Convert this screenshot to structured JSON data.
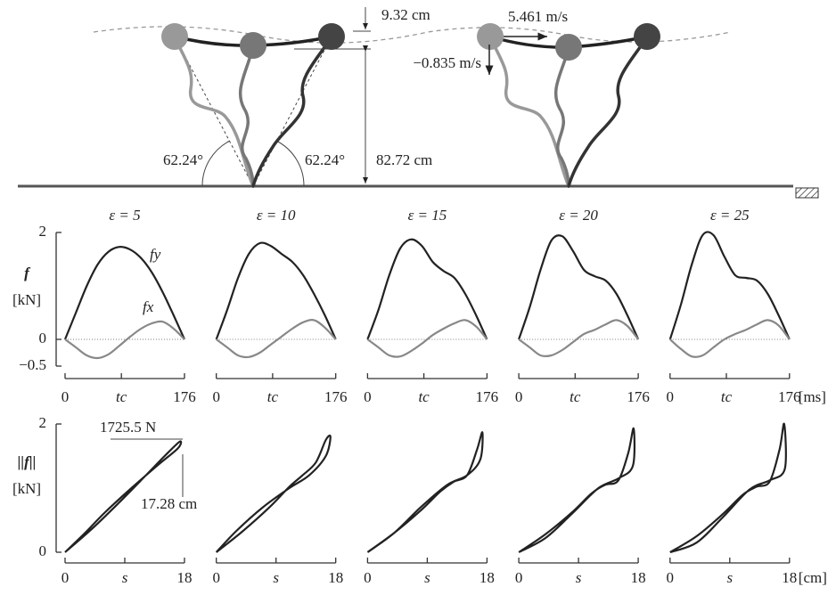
{
  "illustration": {
    "clearance": "9.32 cm",
    "vx": "5.461 m/s",
    "vy": "−0.835 m/s",
    "angle": "62.24°",
    "height": "82.72 cm"
  },
  "chart_data": [
    {
      "type": "line",
      "title": "ε = 5",
      "ylabel": "f",
      "yunit": "[kN]",
      "x": [
        0,
        16,
        32,
        48,
        64,
        80,
        96,
        112,
        128,
        144,
        160,
        176
      ],
      "series": [
        {
          "name": "fy",
          "color": "#222222",
          "values": [
            0,
            0.5,
            1.0,
            1.4,
            1.64,
            1.73,
            1.68,
            1.52,
            1.25,
            0.88,
            0.45,
            0
          ]
        },
        {
          "name": "fx",
          "color": "#888888",
          "values": [
            0,
            -0.15,
            -0.3,
            -0.35,
            -0.28,
            -0.12,
            0.05,
            0.2,
            0.3,
            0.33,
            0.2,
            0
          ]
        }
      ],
      "xlim": [
        0,
        176
      ],
      "ylim": [
        -0.5,
        2
      ],
      "xticks": [
        0,
        {
          "value": 83,
          "label": "tc"
        },
        176
      ],
      "yticks": [
        {
          "value": -0.5,
          "label": "−0.5"
        },
        0,
        2
      ]
    },
    {
      "type": "line",
      "title": "ε = 10",
      "x": [
        0,
        16,
        32,
        48,
        64,
        80,
        96,
        112,
        128,
        144,
        160,
        176
      ],
      "series": [
        {
          "color": "#222222",
          "values": [
            0,
            0.55,
            1.15,
            1.6,
            1.8,
            1.75,
            1.6,
            1.45,
            1.2,
            0.85,
            0.45,
            0
          ]
        },
        {
          "color": "#888888",
          "values": [
            0,
            -0.15,
            -0.3,
            -0.33,
            -0.25,
            -0.1,
            0.05,
            0.2,
            0.32,
            0.36,
            0.22,
            0
          ]
        }
      ],
      "xlim": [
        0,
        176
      ],
      "ylim": [
        -0.5,
        2
      ],
      "xticks": [
        0,
        {
          "value": 83,
          "label": "tc"
        },
        176
      ]
    },
    {
      "type": "line",
      "title": "ε = 15",
      "x": [
        0,
        16,
        32,
        48,
        64,
        80,
        96,
        112,
        128,
        144,
        160,
        176
      ],
      "series": [
        {
          "color": "#222222",
          "values": [
            0,
            0.55,
            1.2,
            1.7,
            1.87,
            1.75,
            1.45,
            1.28,
            1.15,
            0.85,
            0.45,
            0
          ]
        },
        {
          "color": "#888888",
          "values": [
            0,
            -0.15,
            -0.3,
            -0.32,
            -0.22,
            -0.08,
            0.08,
            0.2,
            0.3,
            0.36,
            0.24,
            0
          ]
        }
      ],
      "xlim": [
        0,
        176
      ],
      "ylim": [
        -0.5,
        2
      ],
      "xticks": [
        0,
        {
          "value": 83,
          "label": "tc"
        },
        176
      ]
    },
    {
      "type": "line",
      "title": "ε = 20",
      "x": [
        0,
        16,
        32,
        48,
        64,
        80,
        96,
        112,
        128,
        144,
        160,
        176
      ],
      "series": [
        {
          "color": "#222222",
          "values": [
            0,
            0.6,
            1.3,
            1.85,
            1.93,
            1.65,
            1.3,
            1.18,
            1.1,
            0.85,
            0.45,
            0
          ]
        },
        {
          "color": "#888888",
          "values": [
            0,
            -0.15,
            -0.3,
            -0.3,
            -0.2,
            -0.05,
            0.1,
            0.18,
            0.28,
            0.36,
            0.25,
            0
          ]
        }
      ],
      "xlim": [
        0,
        176
      ],
      "ylim": [
        -0.5,
        2
      ],
      "xticks": [
        0,
        {
          "value": 83,
          "label": "tc"
        },
        176
      ]
    },
    {
      "type": "line",
      "title": "ε = 25",
      "xlabel": "[ms]",
      "x": [
        0,
        16,
        32,
        48,
        64,
        80,
        96,
        112,
        128,
        144,
        160,
        176
      ],
      "series": [
        {
          "color": "#222222",
          "values": [
            0,
            0.65,
            1.4,
            1.95,
            1.95,
            1.55,
            1.2,
            1.15,
            1.1,
            0.85,
            0.45,
            0
          ]
        },
        {
          "color": "#888888",
          "values": [
            0,
            -0.18,
            -0.32,
            -0.3,
            -0.15,
            0,
            0.1,
            0.18,
            0.28,
            0.36,
            0.26,
            0
          ]
        }
      ],
      "xlim": [
        0,
        176
      ],
      "ylim": [
        -0.5,
        2
      ],
      "xticks": [
        0,
        {
          "value": 83,
          "label": "tc"
        },
        176
      ]
    },
    {
      "type": "line",
      "ylabel": "||f||",
      "yunit": "[kN]",
      "annotations": [
        "1725.5 N",
        "17.28 cm"
      ],
      "color": "#222222",
      "x": [
        0,
        4,
        8,
        12,
        15,
        17.28,
        17,
        14,
        10,
        6,
        3,
        0
      ],
      "values": [
        0,
        0.36,
        0.76,
        1.18,
        1.5,
        1.7255,
        1.62,
        1.36,
        1.0,
        0.62,
        0.3,
        0
      ],
      "xlim": [
        0,
        18
      ],
      "ylim": [
        0,
        2
      ],
      "xticks": [
        0,
        {
          "value": 9,
          "label": "s"
        },
        18
      ],
      "yticks": [
        0,
        2
      ]
    },
    {
      "type": "line",
      "color": "#222222",
      "x": [
        0,
        4,
        8,
        11,
        13,
        15,
        16.5,
        17.2,
        16.5,
        14,
        11,
        7,
        3,
        0
      ],
      "values": [
        0,
        0.33,
        0.7,
        1.02,
        1.2,
        1.4,
        1.75,
        1.8,
        1.5,
        1.2,
        1.0,
        0.7,
        0.33,
        0
      ],
      "xlim": [
        0,
        18
      ],
      "ylim": [
        0,
        2
      ],
      "xticks": [
        0,
        {
          "value": 9,
          "label": "s"
        },
        18
      ]
    },
    {
      "type": "line",
      "color": "#222222",
      "x": [
        0,
        4,
        8,
        11,
        13,
        15,
        16.5,
        17.3,
        17,
        15,
        12,
        8,
        4,
        0
      ],
      "values": [
        0,
        0.3,
        0.65,
        0.95,
        1.1,
        1.2,
        1.6,
        1.87,
        1.45,
        1.2,
        1.05,
        0.7,
        0.3,
        0
      ],
      "xlim": [
        0,
        18
      ],
      "ylim": [
        0,
        2
      ],
      "xticks": [
        0,
        {
          "value": 9,
          "label": "s"
        },
        18
      ]
    },
    {
      "type": "line",
      "color": "#222222",
      "x": [
        0,
        4,
        8,
        11,
        13,
        15,
        16.5,
        17.3,
        17.2,
        15,
        12,
        8,
        4,
        0
      ],
      "values": [
        0,
        0.28,
        0.62,
        0.92,
        1.05,
        1.12,
        1.55,
        1.93,
        1.35,
        1.15,
        1.0,
        0.6,
        0.22,
        0
      ],
      "xlim": [
        0,
        18
      ],
      "ylim": [
        0,
        2
      ],
      "xticks": [
        0,
        {
          "value": 9,
          "label": "s"
        },
        18
      ]
    },
    {
      "type": "line",
      "xlabel": "[cm]",
      "color": "#222222",
      "x": [
        0,
        4,
        8,
        11,
        13,
        15,
        16.5,
        17.2,
        17.3,
        15,
        12,
        8,
        4,
        0
      ],
      "values": [
        0,
        0.25,
        0.6,
        0.9,
        1.02,
        1.1,
        1.6,
        2.0,
        1.3,
        1.12,
        0.98,
        0.55,
        0.15,
        0
      ],
      "xlim": [
        0,
        18
      ],
      "ylim": [
        0,
        2
      ],
      "xticks": [
        0,
        {
          "value": 9,
          "label": "s"
        },
        18
      ]
    }
  ]
}
